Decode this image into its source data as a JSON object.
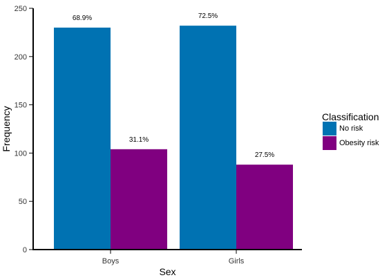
{
  "chart_data": {
    "type": "bar",
    "categories": [
      "Boys",
      "Girls"
    ],
    "series": [
      {
        "name": "No risk",
        "values": [
          230,
          232
        ],
        "labels": [
          "68.9%",
          "72.5%"
        ],
        "color": "#0072b2"
      },
      {
        "name": "Obesity risk",
        "values": [
          104,
          88
        ],
        "labels": [
          "31.1%",
          "27.5%"
        ],
        "color": "#800080"
      }
    ],
    "xlabel": "Sex",
    "ylabel": "Frequency",
    "ylim": [
      0,
      250
    ],
    "yticks": [
      0,
      50,
      100,
      150,
      200,
      250
    ],
    "grid": false,
    "legend": {
      "title": "Classification",
      "placement": "right"
    }
  }
}
